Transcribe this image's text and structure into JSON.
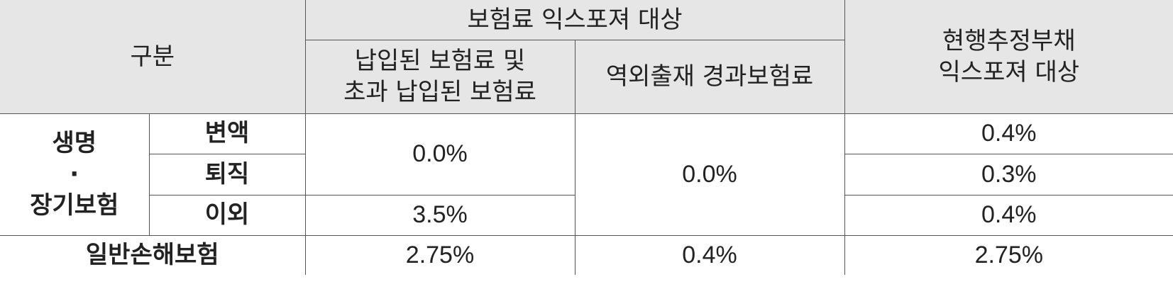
{
  "header": {
    "category": "구분",
    "premium_exposure": "보험료 익스포져 대상",
    "paid_premium_line1": "납입된 보험료 및",
    "paid_premium_line2": "초과 납입된 보험료",
    "unearned_premium": "역외출재 경과보험료",
    "reserve_line1": "현행추정부채",
    "reserve_line2": "익스포져 대상"
  },
  "life": {
    "label_line1": "생명",
    "label_dot": "·",
    "label_line2": "장기보험",
    "rows": [
      {
        "name": "변액",
        "reserve": "0.4%"
      },
      {
        "name": "퇴직",
        "reserve": "0.3%"
      },
      {
        "name": "이외",
        "reserve": "0.4%"
      }
    ],
    "paid_variable_retirement": "0.0%",
    "paid_other": "3.5%",
    "unearned": "0.0%"
  },
  "general": {
    "label": "일반손해보험",
    "paid": "2.75%",
    "unearned": "0.4%",
    "reserve": "2.75%"
  }
}
